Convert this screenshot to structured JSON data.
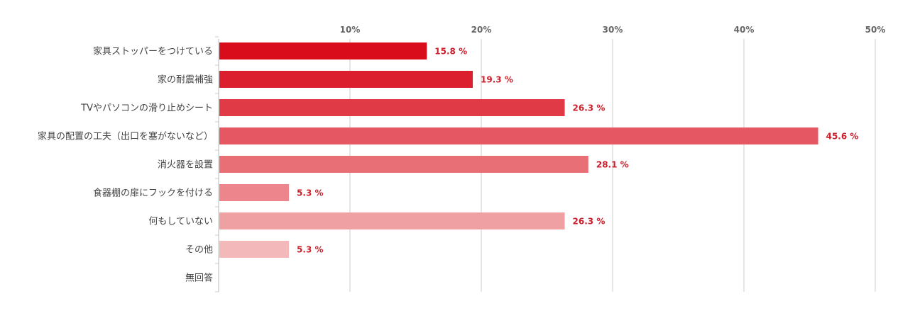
{
  "chart_data": {
    "type": "bar",
    "orientation": "horizontal",
    "categories": [
      "家具ストッパーをつけている",
      "家の耐震補強",
      "TVやパソコンの滑り止めシート",
      "家具の配置の工夫（出口を塞がないなど）",
      "消火器を設置",
      "食器棚の扉にフックを付ける",
      "何もしていない",
      "その他",
      "無回答"
    ],
    "values": [
      15.8,
      19.3,
      26.3,
      45.6,
      28.1,
      5.3,
      26.3,
      5.3,
      null
    ],
    "value_labels": [
      "15.8 %",
      "19.3 %",
      "26.3 %",
      "45.6 %",
      "28.1 %",
      "5.3 %",
      "26.3 %",
      "5.3 %",
      ""
    ],
    "bar_colors": [
      "#d80c1b",
      "#dc1f2f",
      "#e03a47",
      "#e65764",
      "#e96f77",
      "#ed868c",
      "#efa0a3",
      "#f3b8ba",
      "#f6c8ca"
    ],
    "value_label_color": "#cc1f2b",
    "xlim": [
      0,
      50
    ],
    "xticks": [
      10,
      20,
      30,
      40,
      50
    ],
    "xtick_labels": [
      "10%",
      "20%",
      "30%",
      "40%",
      "50%"
    ],
    "x_axis_position": "top",
    "grid": true,
    "title": "",
    "xlabel": "",
    "ylabel": ""
  }
}
